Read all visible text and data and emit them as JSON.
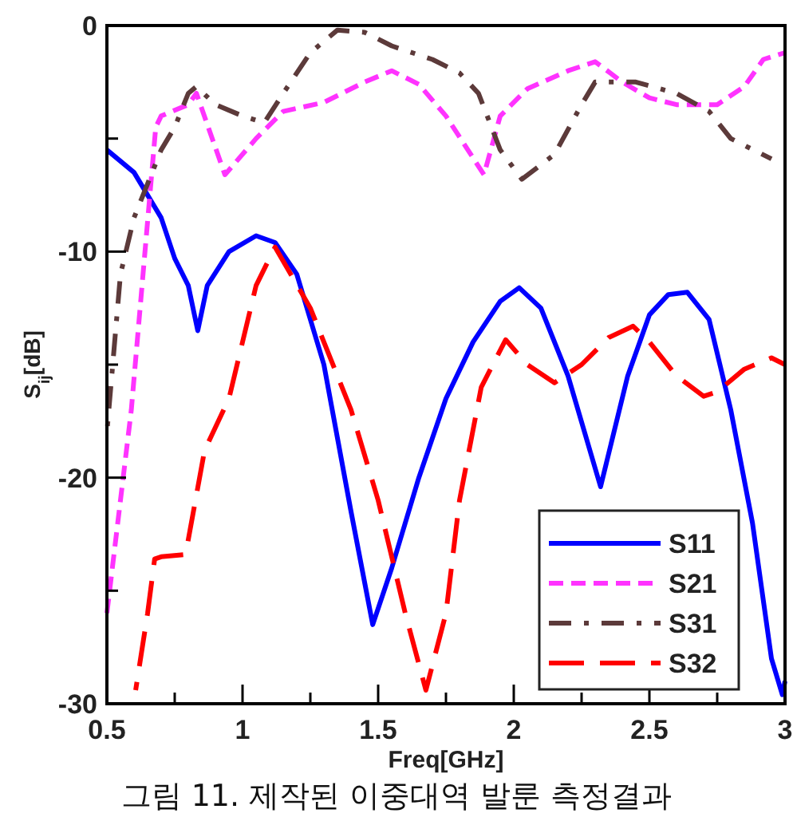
{
  "chart_data": {
    "type": "line",
    "xlabel": "Freq[GHz]",
    "ylabel": "S$_{ij}$[dB]",
    "annotations": [
      "그림 11. 제작된 이중대역 발룬 측정결과"
    ],
    "xlim": [
      0.5,
      3
    ],
    "ylim": [
      -30,
      0
    ],
    "xticks": [
      0.5,
      {
        "value": 0.75,
        "label": null
      },
      1,
      {
        "value": 1.25,
        "label": null
      },
      1.5,
      {
        "value": 1.75,
        "label": null
      },
      2,
      {
        "value": 2.25,
        "label": null
      },
      2.5,
      {
        "value": 2.75,
        "label": null
      },
      3
    ],
    "yticks": [
      -30,
      {
        "value": -25,
        "label": null
      },
      -20,
      {
        "value": -15,
        "label": null
      },
      -10,
      {
        "value": -5,
        "label": null
      },
      0
    ],
    "grid": false,
    "legend": "bottom right",
    "series": [
      {
        "name": "S11",
        "color": "#0000ff",
        "line_style": "solid",
        "x": [
          0.5,
          0.6,
          0.7,
          0.75,
          0.8,
          0.835,
          0.87,
          0.95,
          1.05,
          1.12,
          1.2,
          1.3,
          1.4,
          1.48,
          1.55,
          1.65,
          1.75,
          1.85,
          1.95,
          2.02,
          2.1,
          2.2,
          2.32,
          2.42,
          2.5,
          2.57,
          2.64,
          2.72,
          2.8,
          2.88,
          2.95,
          2.99,
          3
        ],
        "values": [
          -5.5,
          -6.5,
          -8.5,
          -10.3,
          -11.5,
          -13.5,
          -11.5,
          -10,
          -9.3,
          -9.6,
          -11,
          -15,
          -21.5,
          -26.5,
          -24,
          -20,
          -16.5,
          -14,
          -12.2,
          -11.6,
          -12.5,
          -15.5,
          -20.4,
          -15.5,
          -12.8,
          -11.9,
          -11.8,
          -13,
          -17,
          -22,
          -28,
          -29.6,
          -29
        ]
      },
      {
        "name": "S21",
        "color": "#ff33ff",
        "line_style": "dashed",
        "x": [
          0.5,
          0.59,
          0.68,
          0.7,
          0.8,
          0.83,
          0.935,
          1.05,
          1.15,
          1.3,
          1.45,
          1.55,
          1.65,
          1.75,
          1.89,
          1.95,
          2.05,
          2.2,
          2.3,
          2.4,
          2.5,
          2.6,
          2.75,
          2.85,
          2.92,
          3
        ],
        "values": [
          -26,
          -17,
          -4.5,
          -4,
          -3.5,
          -3,
          -6.6,
          -5,
          -3.8,
          -3.4,
          -2.5,
          -2,
          -2.6,
          -4,
          -6.6,
          -4,
          -2.8,
          -2,
          -1.6,
          -2.5,
          -3.2,
          -3.5,
          -3.5,
          -2.7,
          -1.5,
          -1.2
        ]
      },
      {
        "name": "S31",
        "color": "#5c3a3a",
        "line_style": "dashdot",
        "x": [
          0.5,
          0.55,
          0.6,
          0.65,
          0.7,
          0.75,
          0.8,
          0.83,
          0.9,
          1,
          1.08,
          1.15,
          1.25,
          1.35,
          1.45,
          1.55,
          1.7,
          1.8,
          1.87,
          1.95,
          2.03,
          2.15,
          2.25,
          2.3,
          2.45,
          2.6,
          2.72,
          2.8,
          2.9,
          2.95
        ],
        "values": [
          -18,
          -11,
          -8.5,
          -7,
          -5.5,
          -4.5,
          -3,
          -2.7,
          -3.5,
          -4,
          -4.3,
          -3,
          -1.2,
          -0.2,
          -0.3,
          -0.9,
          -1.5,
          -2.1,
          -3,
          -5.5,
          -6.8,
          -5.7,
          -3.5,
          -2.5,
          -2.5,
          -3,
          -3.8,
          -5,
          -5.6,
          -5.9
        ]
      },
      {
        "name": "S32",
        "color": "#ff0000",
        "line_style": "longdash",
        "x": [
          0.606,
          0.65,
          0.676,
          0.7,
          0.79,
          0.86,
          0.95,
          1.05,
          1.12,
          1.25,
          1.4,
          1.5,
          1.6,
          1.676,
          1.75,
          1.8,
          1.88,
          1.97,
          2.05,
          2.15,
          2.25,
          2.35,
          2.44,
          2.5,
          2.6,
          2.7,
          2.75,
          2.85,
          2.95,
          3
        ],
        "values": [
          -29.4,
          -26,
          -23.6,
          -23.5,
          -23.4,
          -18.8,
          -16.5,
          -11.5,
          -9.8,
          -12.5,
          -17,
          -21,
          -26,
          -29.4,
          -26,
          -21,
          -16,
          -13.9,
          -15,
          -15.8,
          -15,
          -13.8,
          -13.3,
          -14,
          -15.5,
          -16.4,
          -16.2,
          -15.2,
          -14.7,
          -15
        ]
      }
    ]
  }
}
